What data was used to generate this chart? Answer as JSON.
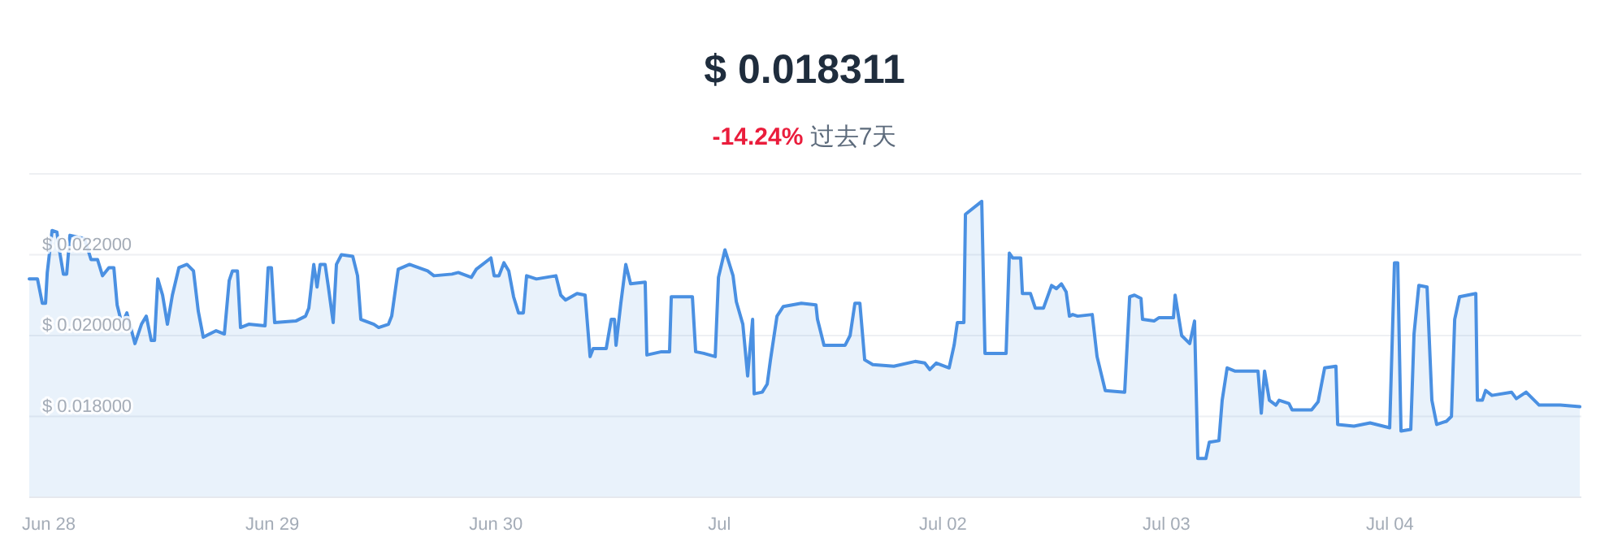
{
  "chart_data": {
    "type": "area",
    "title": "$ 0.018311",
    "subtitle": "**-14.24%** 过去7天",
    "xlim": [
      "--06-27T21:54",
      "--07-04T20:33"
    ],
    "xticks": [
      {
        "value": "--06-28",
        "label": "Jun 28"
      },
      {
        "value": "--06-29",
        "label": "Jun 29"
      },
      {
        "value": "--06-30",
        "label": "Jun 30"
      },
      {
        "value": "--07-01",
        "label": "Jul"
      },
      {
        "value": "--07-02",
        "label": "Jul 02"
      },
      {
        "value": "--07-03",
        "label": "Jul 03"
      },
      {
        "value": "--07-04",
        "label": "Jul 04"
      }
    ],
    "ylim": [
      0.016,
      0.024
    ],
    "yticks": [
      {
        "value": 0.018,
        "label": "$ 0.018000"
      },
      {
        "value": 0.02,
        "label": "$ 0.020000"
      },
      {
        "value": 0.022,
        "label": "$ 0.022000"
      },
      {
        "value": 0.024,
        "label": null
      }
    ],
    "grid": "y",
    "marker": "none",
    "line_style": "solid",
    "series": [
      {
        "color": "#4a90e2",
        "x": [
          "--06-27T21:54",
          "--06-27T22:47",
          "--06-27T23:18",
          "--06-27T23:39",
          "--06-27T23:50",
          "--06-28T00:21",
          "--06-28T00:52",
          "--06-28T01:13",
          "--06-28T01:34",
          "--06-28T01:55",
          "--06-28T02:16",
          "--06-28T03:50",
          "--06-28T04:32",
          "--06-28T05:14",
          "--06-28T05:46",
          "--06-28T06:27",
          "--06-28T06:59",
          "--06-28T07:20",
          "--06-28T07:51",
          "--06-28T08:23",
          "--06-28T09:15",
          "--06-28T09:57",
          "--06-28T10:28",
          "--06-28T11:00",
          "--06-28T11:21",
          "--06-28T11:42",
          "--06-28T12:13",
          "--06-28T12:44",
          "--06-28T13:16",
          "--06-28T13:58",
          "--06-28T14:50",
          "--06-28T15:32",
          "--06-28T16:03",
          "--06-28T16:35",
          "--06-28T17:58",
          "--06-28T18:51",
          "--06-28T19:22",
          "--06-28T19:43",
          "--06-28T20:15",
          "--06-28T20:35",
          "--06-28T21:28",
          "--06-28T23:13",
          "--06-28T23:33",
          "--06-28T23:54",
          "--06-29T00:15",
          "--06-29T02:31",
          "--06-29T03:34",
          "--06-29T03:55",
          "--06-29T04:27",
          "--06-29T04:48",
          "--06-29T05:08",
          "--06-29T05:40",
          "--06-29T06:01",
          "--06-29T06:32",
          "--06-29T06:53",
          "--06-29T07:25",
          "--06-29T08:38",
          "--06-29T09:09",
          "--06-29T09:30",
          "--06-29T10:54",
          "--06-29T11:25",
          "--06-29T12:28",
          "--06-29T12:49",
          "--06-29T13:31",
          "--06-29T14:44",
          "--06-29T16:40",
          "--06-29T17:21",
          "--06-29T19:17",
          "--06-29T19:58",
          "--06-29T21:22",
          "--06-29T21:54",
          "--06-29T23:28",
          "--06-29T23:49",
          "--06-30T00:20",
          "--06-30T00:52",
          "--06-30T01:23",
          "--06-30T01:54",
          "--06-30T02:26",
          "--06-30T02:57",
          "--06-30T03:18",
          "--06-30T04:21",
          "--06-30T06:27",
          "--06-30T06:58",
          "--06-30T07:29",
          "--06-30T08:43",
          "--06-30T09:35",
          "--06-30T10:07",
          "--06-30T10:27",
          "--06-30T11:51",
          "--06-30T12:23",
          "--06-30T12:44",
          "--06-30T12:54",
          "--06-30T13:25",
          "--06-30T13:57",
          "--06-30T14:28",
          "--06-30T16:02",
          "--06-30T16:13",
          "--06-30T17:47",
          "--06-30T18:39",
          "--06-30T18:50",
          "--06-30T21:06",
          "--06-30T21:27",
          "--06-30T22:19",
          "--06-30T23:33",
          "--06-30T23:54",
          "--07-01T00:36",
          "--07-01T01:28",
          "--07-01T01:49",
          "--07-01T02:31",
          "--07-01T03:02",
          "--07-01T03:34",
          "--07-01T03:44",
          "--07-01T04:36",
          "--07-01T05:08",
          "--07-01T05:29",
          "--07-01T06:11",
          "--07-01T06:52",
          "--07-01T08:48",
          "--07-01T10:22",
          "--07-01T10:32",
          "--07-01T11:14",
          "--07-01T13:30",
          "--07-01T14:02",
          "--07-01T14:33",
          "--07-01T15:05",
          "--07-01T15:36",
          "--07-01T16:28",
          "--07-01T18:44",
          "--07-01T21:01",
          "--07-01T22:03",
          "--07-01T22:35",
          "--07-01T23:17",
          "--07-02T00:40",
          "--07-02T01:12",
          "--07-02T01:33",
          "--07-02T02:15",
          "--07-02T02:25",
          "--07-02T04:10",
          "--07-02T04:31",
          "--07-02T06:47",
          "--07-02T07:08",
          "--07-02T07:29",
          "--07-02T08:21",
          "--07-02T08:32",
          "--07-02T09:24",
          "--07-02T09:55",
          "--07-02T10:48",
          "--07-02T11:40",
          "--07-02T12:11",
          "--07-02T12:43",
          "--07-02T13:14",
          "--07-02T13:35",
          "--07-02T13:56",
          "--07-02T14:28",
          "--07-02T16:02",
          "--07-02T16:33",
          "--07-02T17:26",
          "--07-02T19:31",
          "--07-02T20:03",
          "--07-02T20:34",
          "--07-02T21:16",
          "--07-02T21:26",
          "--07-02T22:40",
          "--07-02T23:11",
          "--07-03T00:45",
          "--07-03T00:56",
          "--07-03T01:38",
          "--07-03T02:30",
          "--07-03T03:01",
          "--07-03T03:22",
          "--07-03T04:14",
          "--07-03T04:36",
          "--07-03T05:38",
          "--07-03T05:59",
          "--07-03T06:31",
          "--07-03T07:23",
          "--07-03T09:50",
          "--07-03T10:11",
          "--07-03T10:32",
          "--07-03T11:03",
          "--07-03T11:45",
          "--07-03T12:06",
          "--07-03T13:09",
          "--07-03T13:30",
          "--07-03T15:35",
          "--07-03T16:17",
          "--07-03T16:59",
          "--07-03T18:12",
          "--07-03T18:23",
          "--07-03T20:08",
          "--07-03T21:52",
          "--07-03T23:58",
          "--07-04T00:29",
          "--07-04T00:50",
          "--07-04T01:11",
          "--07-04T02:14",
          "--07-04T02:35",
          "--07-04T03:06",
          "--07-04T03:59",
          "--07-04T04:30",
          "--07-04T05:01",
          "--07-04T06:04",
          "--07-04T06:36",
          "--07-04T06:57",
          "--07-04T07:28",
          "--07-04T09:13",
          "--07-04T09:23",
          "--07-04T09:55",
          "--07-04T10:16",
          "--07-04T10:57",
          "--07-04T13:03",
          "--07-04T13:34",
          "--07-04T14:37",
          "--07-04T15:40",
          "--07-04T16:01",
          "--07-04T18:17",
          "--07-04T20:23"
        ],
        "values": [
          0.0214,
          0.0214,
          0.0208,
          0.0208,
          0.02156,
          0.0226,
          0.02256,
          0.022,
          0.02152,
          0.02152,
          0.02248,
          0.0224,
          0.02188,
          0.02188,
          0.02148,
          0.02168,
          0.02168,
          0.02076,
          0.02028,
          0.02056,
          0.0198,
          0.02028,
          0.02048,
          0.01988,
          0.01988,
          0.0214,
          0.021,
          0.02028,
          0.021,
          0.02168,
          0.02176,
          0.0216,
          0.0206,
          0.01996,
          0.02012,
          0.02004,
          0.02136,
          0.0216,
          0.0216,
          0.0202,
          0.02028,
          0.02024,
          0.02168,
          0.02168,
          0.02032,
          0.02036,
          0.02048,
          0.02068,
          0.02176,
          0.0212,
          0.02176,
          0.02176,
          0.0212,
          0.02032,
          0.02176,
          0.022,
          0.02196,
          0.02148,
          0.0204,
          0.02028,
          0.0202,
          0.02028,
          0.02048,
          0.02164,
          0.02176,
          0.0216,
          0.02148,
          0.02152,
          0.02156,
          0.02144,
          0.02164,
          0.02192,
          0.02148,
          0.02148,
          0.0218,
          0.0216,
          0.02096,
          0.02056,
          0.02056,
          0.02148,
          0.0214,
          0.02148,
          0.021,
          0.02088,
          0.02104,
          0.021,
          0.01948,
          0.01968,
          0.01968,
          0.0204,
          0.0204,
          0.01976,
          0.0208,
          0.02176,
          0.02128,
          0.02132,
          0.01952,
          0.0196,
          0.0196,
          0.02096,
          0.02096,
          0.0196,
          0.01956,
          0.01948,
          0.02144,
          0.02212,
          0.02148,
          0.02084,
          0.02028,
          0.019,
          0.0204,
          0.01856,
          0.0186,
          0.0188,
          0.0194,
          0.02048,
          0.02072,
          0.0208,
          0.02076,
          0.0204,
          0.01976,
          0.01976,
          0.02,
          0.0208,
          0.0208,
          0.0194,
          0.01928,
          0.01924,
          0.01936,
          0.01932,
          0.01916,
          0.01932,
          0.0192,
          0.01976,
          0.02032,
          0.02032,
          0.023,
          0.02332,
          0.01956,
          0.01956,
          0.02204,
          0.02192,
          0.02192,
          0.02104,
          0.02104,
          0.02068,
          0.02068,
          0.02124,
          0.02116,
          0.02128,
          0.02108,
          0.02048,
          0.02052,
          0.02048,
          0.02052,
          0.01948,
          0.01864,
          0.0186,
          0.02096,
          0.021,
          0.02092,
          0.0204,
          0.02036,
          0.02044,
          0.02044,
          0.021,
          0.02,
          0.0198,
          0.02036,
          0.01696,
          0.01696,
          0.01736,
          0.0174,
          0.0184,
          0.0192,
          0.01912,
          0.01912,
          0.01808,
          0.01912,
          0.0184,
          0.01828,
          0.0184,
          0.01832,
          0.01816,
          0.01816,
          0.01836,
          0.0192,
          0.01924,
          0.0178,
          0.01776,
          0.01784,
          0.01772,
          0.0218,
          0.0218,
          0.01764,
          0.01768,
          0.02004,
          0.02124,
          0.0212,
          0.0184,
          0.0178,
          0.01788,
          0.018,
          0.0204,
          0.02096,
          0.02104,
          0.0184,
          0.0184,
          0.01864,
          0.01852,
          0.0186,
          0.01844,
          0.0186,
          0.01836,
          0.01828,
          0.01828,
          0.01824
        ]
      }
    ]
  }
}
